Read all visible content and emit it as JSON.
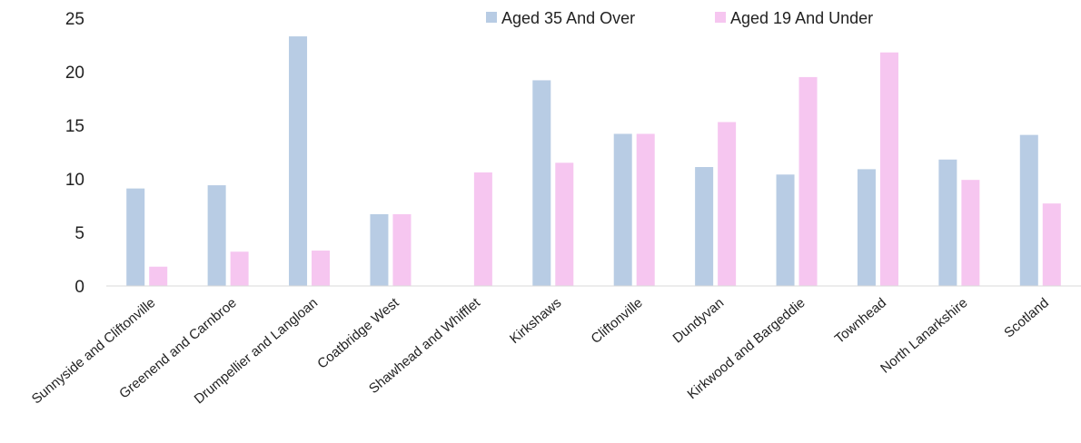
{
  "chart_data": {
    "type": "bar",
    "title": "",
    "xlabel": "",
    "ylabel": "",
    "ylim": [
      0,
      25
    ],
    "yticks": [
      0,
      5,
      10,
      15,
      20,
      25
    ],
    "grid": false,
    "legend_position": "top-right",
    "categories": [
      "Sunnyside and Cliftonville",
      "Greenend and Carnbroe",
      "Drumpellier and Langloan",
      "Coatbridge West",
      "Shawhead and Whifflet",
      "Kirkshaws",
      "Cliftonville",
      "Dundyvan",
      "Kirkwood and Bargeddie",
      "Townhead",
      "North Lanarkshire",
      "Scotland"
    ],
    "series": [
      {
        "name": "Aged 35 And Over",
        "color": "#b8cce4",
        "values": [
          9.1,
          9.4,
          23.3,
          6.7,
          0,
          19.2,
          14.2,
          11.1,
          10.4,
          10.9,
          11.8,
          14.1
        ]
      },
      {
        "name": "Aged 19 And Under",
        "color": "#f6c6f0",
        "values": [
          1.8,
          3.2,
          3.3,
          6.7,
          10.6,
          11.5,
          14.2,
          15.3,
          19.5,
          21.8,
          9.9,
          7.7
        ]
      }
    ]
  }
}
